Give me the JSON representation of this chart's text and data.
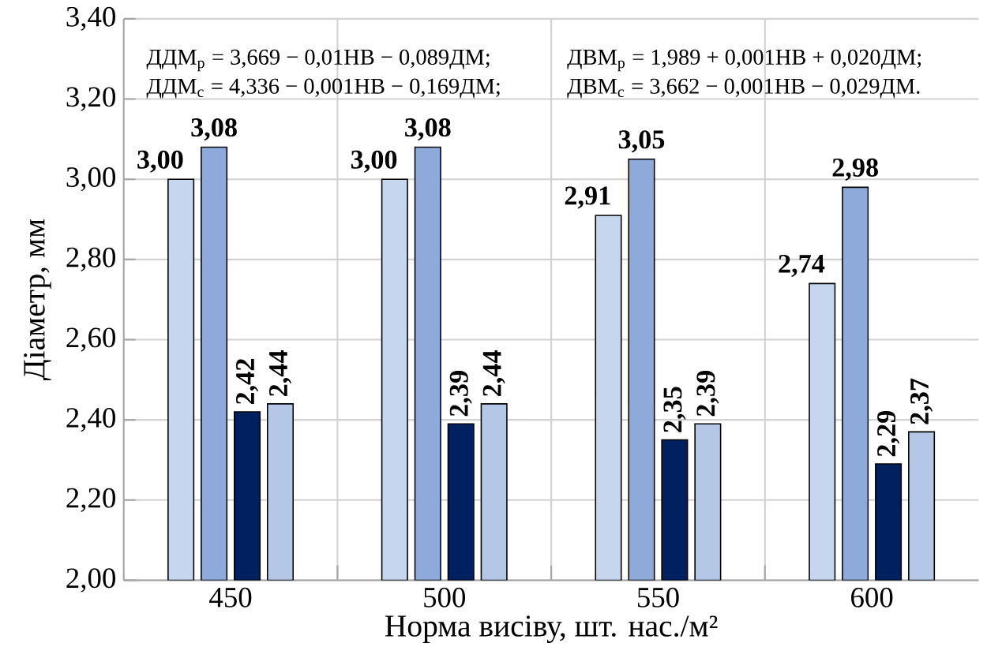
{
  "chart_data": {
    "type": "bar",
    "xlabel": "Норма висіву, шт. нас./м²",
    "ylabel": "Діаметр, мм",
    "categories": [
      "450",
      "500",
      "550",
      "600"
    ],
    "series": [
      {
        "color": "#c5d6ee",
        "values": [
          3.0,
          3.0,
          2.91,
          2.74
        ],
        "value_labels": [
          "3,00",
          "3,00",
          "2,91",
          "2,74"
        ]
      },
      {
        "color": "#8eaadb",
        "values": [
          3.08,
          3.08,
          3.05,
          2.98
        ],
        "value_labels": [
          "3,08",
          "3,08",
          "3,05",
          "2,98"
        ]
      },
      {
        "color": "#002060",
        "values": [
          2.42,
          2.39,
          2.35,
          2.29
        ],
        "value_labels": [
          "2,42",
          "2,39",
          "2,35",
          "2,29"
        ]
      },
      {
        "color": "#b4c7e7",
        "values": [
          2.44,
          2.44,
          2.39,
          2.37
        ],
        "value_labels": [
          "2,44",
          "2,44",
          "2,39",
          "2,37"
        ]
      }
    ],
    "ylim": [
      2.0,
      3.4
    ],
    "yticks": [
      {
        "value": 2.0,
        "label": "2,00"
      },
      {
        "value": 2.2,
        "label": "2,20"
      },
      {
        "value": 2.4,
        "label": "2,40"
      },
      {
        "value": 2.6,
        "label": "2,60"
      },
      {
        "value": 2.8,
        "label": "2,80"
      },
      {
        "value": 3.0,
        "label": "3,00"
      },
      {
        "value": 3.2,
        "label": "3,20"
      },
      {
        "value": 3.4,
        "label": "3,40"
      }
    ],
    "grid": true,
    "annotations": [
      "ДДМ$_{р}$ = 3,669 − 0,01НВ − 0,089ДМ;",
      "ДВМ$_{р}$ = 1,989 + 0,001НВ + 0,020ДМ;",
      "ДДМ$_{с}$ = 4,336 − 0,001НВ − 0,169ДМ;",
      "ДВМ$_{с}$ = 3,662 − 0,001НВ − 0,029ДМ."
    ]
  }
}
